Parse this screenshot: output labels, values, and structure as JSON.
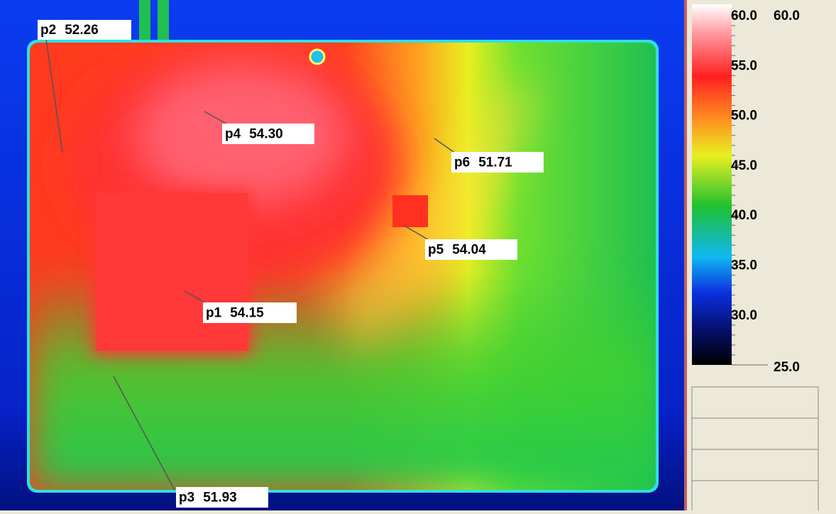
{
  "measurements": [
    {
      "label": "p2",
      "value": "52.26"
    },
    {
      "label": "p4",
      "value": "54.30"
    },
    {
      "label": "p6",
      "value": "51.71"
    },
    {
      "label": "p5",
      "value": "54.04"
    },
    {
      "label": "p1",
      "value": "54.15"
    },
    {
      "label": "p3",
      "value": "51.93"
    }
  ],
  "scale": {
    "max": "60.0",
    "min": "25.0",
    "ticks": [
      "60.0",
      "55.0",
      "50.0",
      "45.0",
      "40.0",
      "35.0",
      "30.0"
    ]
  }
}
